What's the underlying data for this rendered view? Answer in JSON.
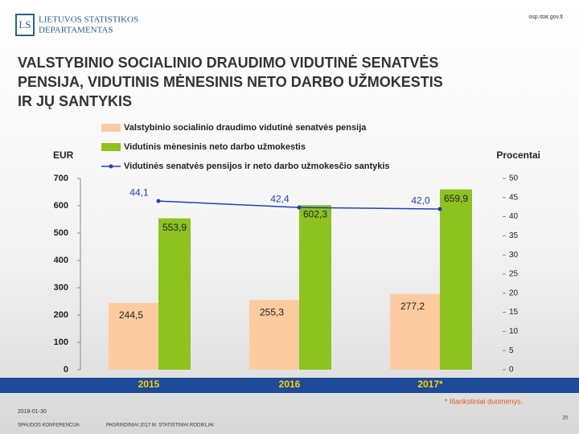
{
  "header": {
    "logo_line1": "LIETUVOS STATISTIKOS",
    "logo_line2": "DEPARTAMENTAS",
    "logo_mark": "LS",
    "url": "osp.stat.gov.lt"
  },
  "footer": {
    "date": "2018-01-30",
    "event": "SPAUDOS KONFERENCIJA",
    "topic": "PAGRINDINIAI 2017 M. STATISTINIAI RODIKLIAI",
    "page": "20",
    "note": "* Išankstiniai duomenys."
  },
  "chart_data": {
    "type": "bar_line",
    "title": [
      "VALSTYBINIO SOCIALINIO DRAUDIMO VIDUTINĖ SENATVĖS",
      "PENSIJA, VIDUTINIS MĖNESINIS NETO DARBO UŽMOKESTIS",
      "IR JŲ SANTYKIS"
    ],
    "y_label": "EUR",
    "y2_label": "Procentai",
    "categories": [
      "2015",
      "2016",
      "2017*"
    ],
    "series": [
      {
        "name": "Valstybinio socialinio draudimo vidutinė senatvės pensija",
        "color": "#fccca0",
        "values": [
          244.5,
          255.3,
          277.2
        ],
        "value_labels": [
          "244,5",
          "255,3",
          "277,2"
        ]
      },
      {
        "name": "Vidutinis mėnesinis neto darbo užmokestis",
        "color": "#8dc21f",
        "values": [
          553.9,
          602.3,
          659.9
        ],
        "value_labels": [
          "553,9",
          "602,3",
          "659,9"
        ]
      },
      {
        "name": "Vidutinės senatvės pensijos ir neto darbo užmokesčio santykis",
        "color": "#1f3fbf",
        "axis": "y2",
        "values": [
          44.1,
          42.4,
          42.0
        ],
        "value_labels": [
          "44,1",
          "42,4",
          "42,0"
        ]
      }
    ],
    "ylim": [
      0,
      700
    ],
    "yticks": [
      0,
      100,
      200,
      300,
      400,
      500,
      600,
      700
    ],
    "y2lim": [
      0,
      50
    ],
    "y2ticks": [
      0,
      5,
      10,
      15,
      20,
      25,
      30,
      35,
      40,
      45,
      50
    ]
  }
}
